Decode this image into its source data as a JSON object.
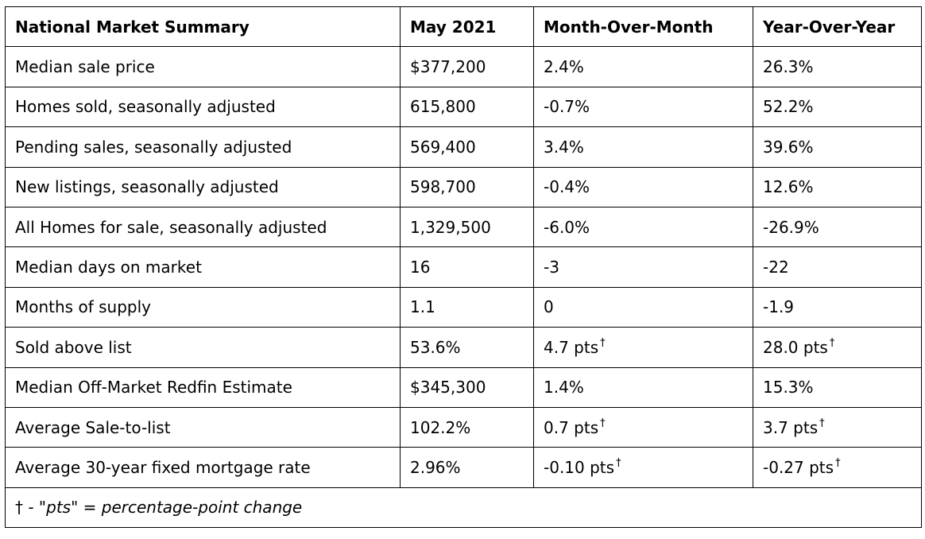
{
  "table": {
    "headers": [
      "National Market Summary",
      "May 2021",
      "Month-Over-Month",
      "Year-Over-Year"
    ],
    "rows": [
      {
        "label": "Median sale price",
        "value": "$377,200",
        "mom": "2.4%",
        "mom_mark": "",
        "yoy": "26.3%",
        "yoy_mark": ""
      },
      {
        "label": "Homes sold, seasonally adjusted",
        "value": "615,800",
        "mom": "-0.7%",
        "mom_mark": "",
        "yoy": "52.2%",
        "yoy_mark": ""
      },
      {
        "label": "Pending sales, seasonally adjusted",
        "value": "569,400",
        "mom": "3.4%",
        "mom_mark": "",
        "yoy": "39.6%",
        "yoy_mark": ""
      },
      {
        "label": "New listings, seasonally adjusted",
        "value": "598,700",
        "mom": "-0.4%",
        "mom_mark": "",
        "yoy": "12.6%",
        "yoy_mark": ""
      },
      {
        "label": "All Homes for sale, seasonally adjusted",
        "value": "1,329,500",
        "mom": "-6.0%",
        "mom_mark": "",
        "yoy": "-26.9%",
        "yoy_mark": ""
      },
      {
        "label": "Median days on market",
        "value": "16",
        "mom": "-3",
        "mom_mark": "",
        "yoy": "-22",
        "yoy_mark": ""
      },
      {
        "label": "Months of supply",
        "value": "1.1",
        "mom": "0",
        "mom_mark": "",
        "yoy": "-1.9",
        "yoy_mark": ""
      },
      {
        "label": "Sold above list",
        "value": "53.6%",
        "mom": "4.7 pts",
        "mom_mark": "†",
        "yoy": "28.0 pts",
        "yoy_mark": "†"
      },
      {
        "label": "Median Off-Market Redfin Estimate",
        "value": "$345,300",
        "mom": "1.4%",
        "mom_mark": "",
        "yoy": "15.3%",
        "yoy_mark": ""
      },
      {
        "label": "Average Sale-to-list",
        "value": "102.2%",
        "mom": "0.7 pts",
        "mom_mark": "†",
        "yoy": "3.7 pts",
        "yoy_mark": "†"
      },
      {
        "label": "Average 30-year fixed mortgage rate",
        "value": "2.96%",
        "mom": "-0.10 pts",
        "mom_mark": "†",
        "yoy": "-0.27 pts",
        "yoy_mark": "†"
      }
    ],
    "footnote": {
      "dagger": "†",
      "text": " - \"pts\" = percentage-point change"
    }
  }
}
